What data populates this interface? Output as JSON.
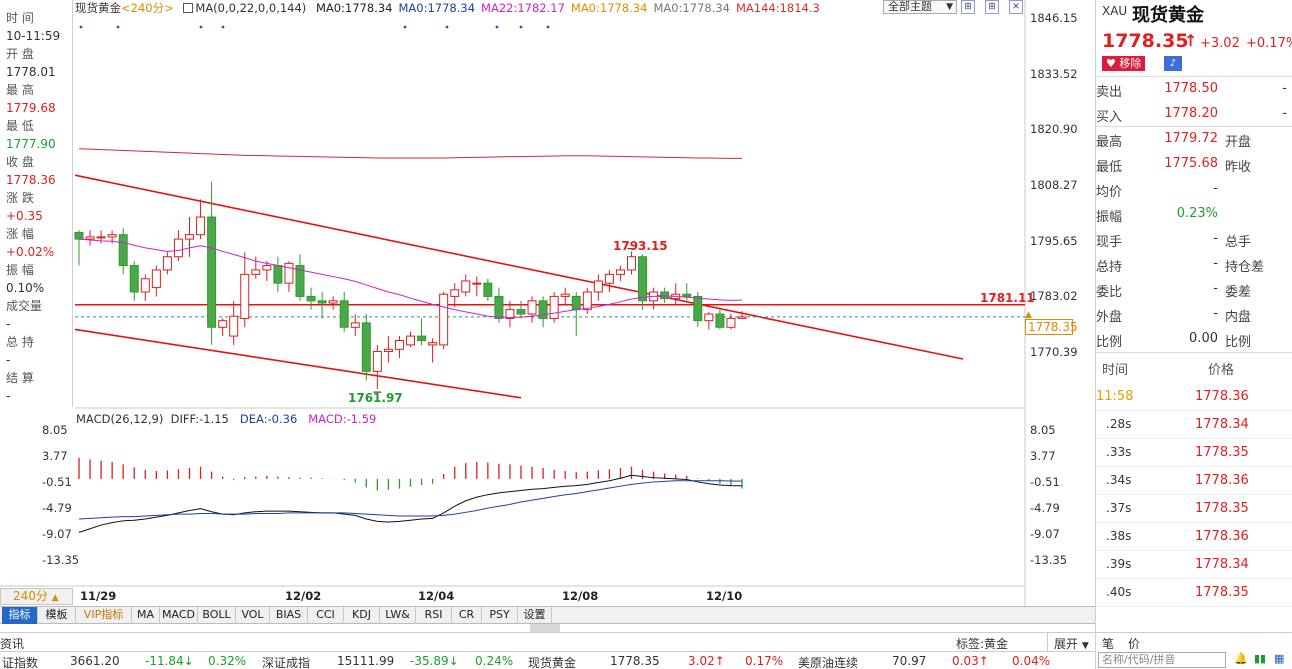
{
  "left_info": {
    "rows": [
      {
        "text": "时  间",
        "cls": "gray"
      },
      {
        "text": "10-11:59",
        "cls": ""
      },
      {
        "text": "开  盘",
        "cls": "gray"
      },
      {
        "text": "1778.01",
        "cls": ""
      },
      {
        "text": "最  高",
        "cls": "gray"
      },
      {
        "text": "1779.68",
        "cls": "red"
      },
      {
        "text": "最  低",
        "cls": "gray"
      },
      {
        "text": "1777.90",
        "cls": "green"
      },
      {
        "text": "收  盘",
        "cls": "gray"
      },
      {
        "text": "1778.36",
        "cls": "red"
      },
      {
        "text": "涨  跌",
        "cls": "gray"
      },
      {
        "text": "+0.35",
        "cls": "red"
      },
      {
        "text": "涨  幅",
        "cls": "gray"
      },
      {
        "text": "+0.02%",
        "cls": "red"
      },
      {
        "text": "振  幅",
        "cls": "gray"
      },
      {
        "text": "0.10%",
        "cls": ""
      },
      {
        "text": "成交量",
        "cls": "gray"
      },
      {
        "text": "-",
        "cls": ""
      },
      {
        "text": "总  持",
        "cls": "gray"
      },
      {
        "text": "-",
        "cls": ""
      },
      {
        "text": "结  算",
        "cls": "gray"
      },
      {
        "text": "-",
        "cls": ""
      }
    ]
  },
  "top_bar": {
    "name": "现货黄金",
    "period": "<240分>",
    "ma_params": "MA(0,0,22,0,0,144)",
    "ma_values": [
      {
        "text": "MA0:1778.34",
        "color": "#222222"
      },
      {
        "text": "MA0:1778.34",
        "color": "#1c3fa8"
      },
      {
        "text": "MA22:1782.17",
        "color": "#cc22cc"
      },
      {
        "text": "MA0:1778.34",
        "color": "#e08a00"
      },
      {
        "text": "MA0:1778.34",
        "color": "#777777"
      },
      {
        "text": "MA144:1814.3",
        "color": "#d43030"
      }
    ],
    "main_select": "全部主题"
  },
  "price_axis": [
    "1846.15",
    "1833.52",
    "1820.90",
    "1808.27",
    "1795.65",
    "1783.02",
    "1770.39"
  ],
  "macd_axis": [
    "8.05",
    "3.77",
    "-0.51",
    "-4.79",
    "-9.07",
    "-13.35"
  ],
  "macd_header": {
    "name": "MACD(26,12,9)",
    "diff": "DIFF:-1.15",
    "dea": "DEA:-0.36",
    "macd": "MACD:-1.59"
  },
  "chart_annotations": {
    "high": "1793.15",
    "low": "1761.97",
    "hline": "1781.11",
    "current": "1778.35"
  },
  "x_dates": [
    "11/29",
    "12/02",
    "12/04",
    "12/08",
    "12/10"
  ],
  "period_button": "240分",
  "tabs": [
    "指标",
    "模板",
    "VIP指标",
    "MA",
    "MACD",
    "BOLL",
    "VOL",
    "BIAS",
    "CCI",
    "KDJ",
    "LW&",
    "RSI",
    "CR",
    "PSY",
    "设置"
  ],
  "quote": {
    "code": "XAU",
    "name": "现货黄金",
    "price": "1778.35",
    "arrow": "↑",
    "change": "+3.02",
    "change_pct": "+0.17%",
    "remove_label": "移除",
    "rows": [
      {
        "l1": "卖出",
        "v1": "1778.50",
        "c1": "red",
        "l2": "",
        "v2": "-"
      },
      {
        "l1": "买入",
        "v1": "1778.20",
        "c1": "red",
        "l2": "",
        "v2": "-"
      },
      {
        "l1": "最高",
        "v1": "1779.72",
        "c1": "red",
        "l2": "开盘",
        "v2": ""
      },
      {
        "l1": "最低",
        "v1": "1775.68",
        "c1": "red",
        "l2": "昨收",
        "v2": ""
      },
      {
        "l1": "均价",
        "v1": "-",
        "c1": "",
        "l2": "",
        "v2": ""
      },
      {
        "l1": "振幅",
        "v1": "0.23%",
        "c1": "green",
        "l2": "",
        "v2": ""
      },
      {
        "l1": "现手",
        "v1": "-",
        "c1": "",
        "l2": "总手",
        "v2": ""
      },
      {
        "l1": "总持",
        "v1": "-",
        "c1": "",
        "l2": "持仓差",
        "v2": ""
      },
      {
        "l1": "委比",
        "v1": "-",
        "c1": "",
        "l2": "委差",
        "v2": ""
      },
      {
        "l1": "外盘",
        "v1": "-",
        "c1": "",
        "l2": "内盘",
        "v2": ""
      },
      {
        "l1": "比例",
        "v1": "0.00",
        "c1": "",
        "l2": "比例",
        "v2": ""
      }
    ],
    "ticks_header": {
      "time": "时间",
      "price": "价格"
    },
    "ticks": [
      {
        "t": "11:58",
        "p": "1778.36"
      },
      {
        "t": ".28s",
        "p": "1778.34"
      },
      {
        "t": ".33s",
        "p": "1778.35"
      },
      {
        "t": ".34s",
        "p": "1778.36"
      },
      {
        "t": ".37s",
        "p": "1778.35"
      },
      {
        "t": ".38s",
        "p": "1778.36"
      },
      {
        "t": ".39s",
        "p": "1778.34"
      },
      {
        "t": ".40s",
        "p": "1778.35"
      }
    ],
    "bottom_labels": {
      "pen": "笔",
      "price": "价"
    },
    "search_placeholder": "名称/代码/拼音"
  },
  "status1": {
    "left": "资讯",
    "tag_label": "标签:黄金",
    "expand": "展开"
  },
  "status2": [
    {
      "t": "证指数",
      "c": ""
    },
    {
      "t": "3661.20",
      "c": ""
    },
    {
      "t": "-11.84↓",
      "c": "green"
    },
    {
      "t": "0.32%",
      "c": "green"
    },
    {
      "t": "深证成指",
      "c": ""
    },
    {
      "t": "15111.99",
      "c": ""
    },
    {
      "t": "-35.89↓",
      "c": "green"
    },
    {
      "t": "0.24%",
      "c": "green"
    },
    {
      "t": "现货黄金",
      "c": ""
    },
    {
      "t": "1778.35",
      "c": ""
    },
    {
      "t": "3.02↑",
      "c": "red"
    },
    {
      "t": "0.17%",
      "c": "red"
    },
    {
      "t": "美原油连续",
      "c": ""
    },
    {
      "t": "70.97",
      "c": ""
    },
    {
      "t": "0.03↑",
      "c": "red"
    },
    {
      "t": "0.04%",
      "c": "red"
    }
  ],
  "chart_data": {
    "type": "candlestick",
    "ylim": [
      1758,
      1848
    ],
    "candles": [
      [
        1797.5,
        1798.0,
        1790.0,
        1796.0
      ],
      [
        1796.0,
        1798.0,
        1794.5,
        1796.5
      ],
      [
        1796.5,
        1798.0,
        1795.0,
        1796.5
      ],
      [
        1796.5,
        1798.0,
        1795.0,
        1797.0
      ],
      [
        1797.0,
        1798.5,
        1788.0,
        1790.0
      ],
      [
        1790.0,
        1791.0,
        1782.0,
        1784.0
      ],
      [
        1784.0,
        1788.0,
        1782.0,
        1787.0
      ],
      [
        1785.0,
        1790.0,
        1783.0,
        1789.0
      ],
      [
        1789.0,
        1793.0,
        1788.0,
        1792.0
      ],
      [
        1792.0,
        1798.0,
        1791.0,
        1796.0
      ],
      [
        1796.0,
        1801.0,
        1792.0,
        1797.0
      ],
      [
        1797.0,
        1805.0,
        1796.0,
        1801.0
      ],
      [
        1801.0,
        1809.0,
        1772.0,
        1776.0
      ],
      [
        1776.0,
        1778.0,
        1774.0,
        1777.5
      ],
      [
        1774.0,
        1782.0,
        1772.0,
        1778.5
      ],
      [
        1778.0,
        1793.0,
        1776.0,
        1788.0
      ],
      [
        1788.0,
        1792.0,
        1787.0,
        1789.0
      ],
      [
        1789.0,
        1791.0,
        1786.5,
        1790.0
      ],
      [
        1790.0,
        1792.0,
        1784.0,
        1786.0
      ],
      [
        1786.0,
        1791.0,
        1784.0,
        1790.5
      ],
      [
        1790.0,
        1792.5,
        1782.0,
        1783.0
      ],
      [
        1783.0,
        1785.0,
        1780.0,
        1782.0
      ],
      [
        1782.0,
        1784.0,
        1778.0,
        1781.5
      ],
      [
        1781.5,
        1783.0,
        1780.0,
        1782.0
      ],
      [
        1782.0,
        1784.0,
        1775.0,
        1776.0
      ],
      [
        1776.0,
        1779.0,
        1774.0,
        1777.0
      ],
      [
        1777.0,
        1779.0,
        1764.0,
        1766.0
      ],
      [
        1766.0,
        1772.0,
        1761.97,
        1770.5
      ],
      [
        1770.5,
        1774.0,
        1768.0,
        1771.0
      ],
      [
        1771.0,
        1774.0,
        1769.0,
        1773.0
      ],
      [
        1772.0,
        1775.0,
        1771.5,
        1774.0
      ],
      [
        1774.0,
        1778.0,
        1772.0,
        1773.0
      ],
      [
        1772.0,
        1773.5,
        1768.0,
        1772.5
      ],
      [
        1772.0,
        1784.0,
        1771.0,
        1783.5
      ],
      [
        1783.0,
        1786.0,
        1780.5,
        1784.5
      ],
      [
        1784.0,
        1788.0,
        1783.0,
        1786.5
      ],
      [
        1786.0,
        1787.5,
        1783.0,
        1786.0
      ],
      [
        1786.0,
        1787.0,
        1782.0,
        1783.0
      ],
      [
        1783.0,
        1785.0,
        1777.0,
        1778.0
      ],
      [
        1778.0,
        1782.0,
        1776.0,
        1780.0
      ],
      [
        1780.0,
        1782.0,
        1778.0,
        1779.0
      ],
      [
        1779.0,
        1783.0,
        1777.0,
        1782.0
      ],
      [
        1782.0,
        1783.0,
        1776.0,
        1778.0
      ],
      [
        1778.0,
        1784.0,
        1777.0,
        1783.0
      ],
      [
        1783.0,
        1785.0,
        1781.0,
        1783.5
      ],
      [
        1783.0,
        1784.0,
        1774.0,
        1780.0
      ],
      [
        1780.0,
        1785.0,
        1779.0,
        1784.0
      ],
      [
        1784.0,
        1788.0,
        1782.0,
        1786.5
      ],
      [
        1786.0,
        1789.0,
        1784.0,
        1788.0
      ],
      [
        1788.0,
        1790.0,
        1786.5,
        1789.0
      ],
      [
        1789.0,
        1793.15,
        1788.0,
        1792.0
      ],
      [
        1792.0,
        1792.5,
        1780.0,
        1782.0
      ],
      [
        1782.0,
        1785.0,
        1780.0,
        1784.0
      ],
      [
        1784.0,
        1785.0,
        1781.5,
        1782.5
      ],
      [
        1782.5,
        1786.0,
        1781.0,
        1783.5
      ],
      [
        1783.5,
        1786.0,
        1782.0,
        1783.0
      ],
      [
        1783.0,
        1784.0,
        1776.0,
        1777.5
      ],
      [
        1777.5,
        1779.5,
        1775.5,
        1779.0
      ],
      [
        1779.0,
        1780.5,
        1775.5,
        1776.0
      ],
      [
        1776.0,
        1779.0,
        1775.5,
        1778.0
      ],
      [
        1778.01,
        1779.68,
        1777.9,
        1778.36
      ]
    ],
    "ma22": [
      1796,
      1795.8,
      1795.6,
      1795.5,
      1795.2,
      1794.6,
      1794.0,
      1793.6,
      1793.2,
      1793.4,
      1794.0,
      1794.5,
      1794.0,
      1793.2,
      1792.5,
      1791.8,
      1791.0,
      1790.5,
      1790.0,
      1789.5,
      1789.0,
      1788.5,
      1788.0,
      1787.5,
      1787.0,
      1786.4,
      1785.6,
      1784.8,
      1784.0,
      1783.4,
      1782.6,
      1781.9,
      1781.2,
      1780.6,
      1780.0,
      1779.5,
      1779.0,
      1778.5,
      1778.3,
      1778.2,
      1778.3,
      1778.5,
      1778.8,
      1779.2,
      1779.6,
      1780.0,
      1780.3,
      1780.7,
      1781.2,
      1781.8,
      1782.4,
      1782.8,
      1783.0,
      1783.1,
      1783.0,
      1782.8,
      1782.6,
      1782.4,
      1782.2,
      1782.1,
      1782.17
    ],
    "ma144": [
      1816.5,
      1816.4,
      1816.3,
      1816.2,
      1816.1,
      1816.0,
      1815.9,
      1815.8,
      1815.7,
      1815.6,
      1815.5,
      1815.4,
      1815.3,
      1815.2,
      1815.1,
      1815.0,
      1814.95,
      1814.9,
      1814.85,
      1814.8,
      1814.75,
      1814.7,
      1814.65,
      1814.6,
      1814.55,
      1814.5,
      1814.45,
      1814.4,
      1814.4,
      1814.4,
      1814.4,
      1814.4,
      1814.4,
      1814.4,
      1814.45,
      1814.5,
      1814.55,
      1814.6,
      1814.65,
      1814.7,
      1814.7,
      1814.75,
      1814.8,
      1814.85,
      1814.9,
      1814.9,
      1814.9,
      1814.85,
      1814.8,
      1814.75,
      1814.7,
      1814.65,
      1814.6,
      1814.55,
      1814.5,
      1814.45,
      1814.4,
      1814.4,
      1814.35,
      1814.3,
      1814.3
    ],
    "trendlines": [
      {
        "from": [
          0,
          1810.5
        ],
        "to": [
          80,
          1768.8
        ],
        "color": "#e81010"
      },
      {
        "from": [
          0,
          1775.5
        ],
        "to": [
          40,
          1760.0
        ],
        "color": "#e81010"
      }
    ],
    "hline": 1781.11,
    "macd_ylim": [
      -15,
      9
    ],
    "macd_hist": [
      3.5,
      3.2,
      3.0,
      2.8,
      2.4,
      1.9,
      1.5,
      1.3,
      1.4,
      1.6,
      1.8,
      2.0,
      1.2,
      0.4,
      -0.2,
      0.3,
      0.4,
      0.5,
      0.4,
      0.3,
      0.2,
      0.2,
      0.1,
      0.05,
      -0.2,
      -0.6,
      -1.4,
      -1.9,
      -1.8,
      -1.6,
      -1.3,
      -1.0,
      -0.8,
      0.8,
      2.0,
      2.6,
      2.8,
      2.7,
      2.5,
      2.4,
      2.2,
      2.0,
      1.8,
      1.5,
      1.3,
      1.1,
      1.2,
      1.4,
      1.6,
      1.8,
      2.0,
      1.5,
      1.2,
      0.9,
      0.7,
      0.5,
      0.1,
      -0.3,
      -0.8,
      -1.2,
      -1.59
    ],
    "diff": [
      -8.8,
      -8.2,
      -7.6,
      -7.2,
      -6.9,
      -6.8,
      -6.6,
      -6.3,
      -6.0,
      -5.6,
      -5.2,
      -4.9,
      -5.4,
      -5.8,
      -5.9,
      -5.6,
      -5.4,
      -5.3,
      -5.3,
      -5.3,
      -5.4,
      -5.5,
      -5.6,
      -5.6,
      -5.8,
      -6.0,
      -6.6,
      -7.0,
      -7.1,
      -7.0,
      -6.8,
      -6.6,
      -6.5,
      -5.6,
      -4.5,
      -3.6,
      -3.0,
      -2.6,
      -2.3,
      -2.1,
      -1.9,
      -1.7,
      -1.6,
      -1.4,
      -1.2,
      -1.1,
      -0.9,
      -0.6,
      -0.3,
      0.1,
      0.6,
      0.4,
      0.2,
      0.1,
      0.0,
      -0.1,
      -0.5,
      -0.8,
      -1.0,
      -1.1,
      -1.15
    ],
    "dea": [
      -6.6,
      -6.5,
      -6.4,
      -6.3,
      -6.2,
      -6.2,
      -6.1,
      -6.0,
      -5.9,
      -5.8,
      -5.8,
      -5.7,
      -5.7,
      -5.8,
      -5.8,
      -5.8,
      -5.7,
      -5.7,
      -5.7,
      -5.6,
      -5.6,
      -5.6,
      -5.6,
      -5.6,
      -5.6,
      -5.7,
      -5.8,
      -5.9,
      -6.0,
      -6.1,
      -6.1,
      -6.1,
      -6.1,
      -6.0,
      -5.8,
      -5.5,
      -5.2,
      -4.8,
      -4.5,
      -4.2,
      -3.8,
      -3.5,
      -3.2,
      -2.9,
      -2.6,
      -2.4,
      -2.1,
      -1.8,
      -1.5,
      -1.2,
      -0.9,
      -0.7,
      -0.5,
      -0.4,
      -0.3,
      -0.3,
      -0.3,
      -0.3,
      -0.3,
      -0.35,
      -0.36
    ]
  }
}
